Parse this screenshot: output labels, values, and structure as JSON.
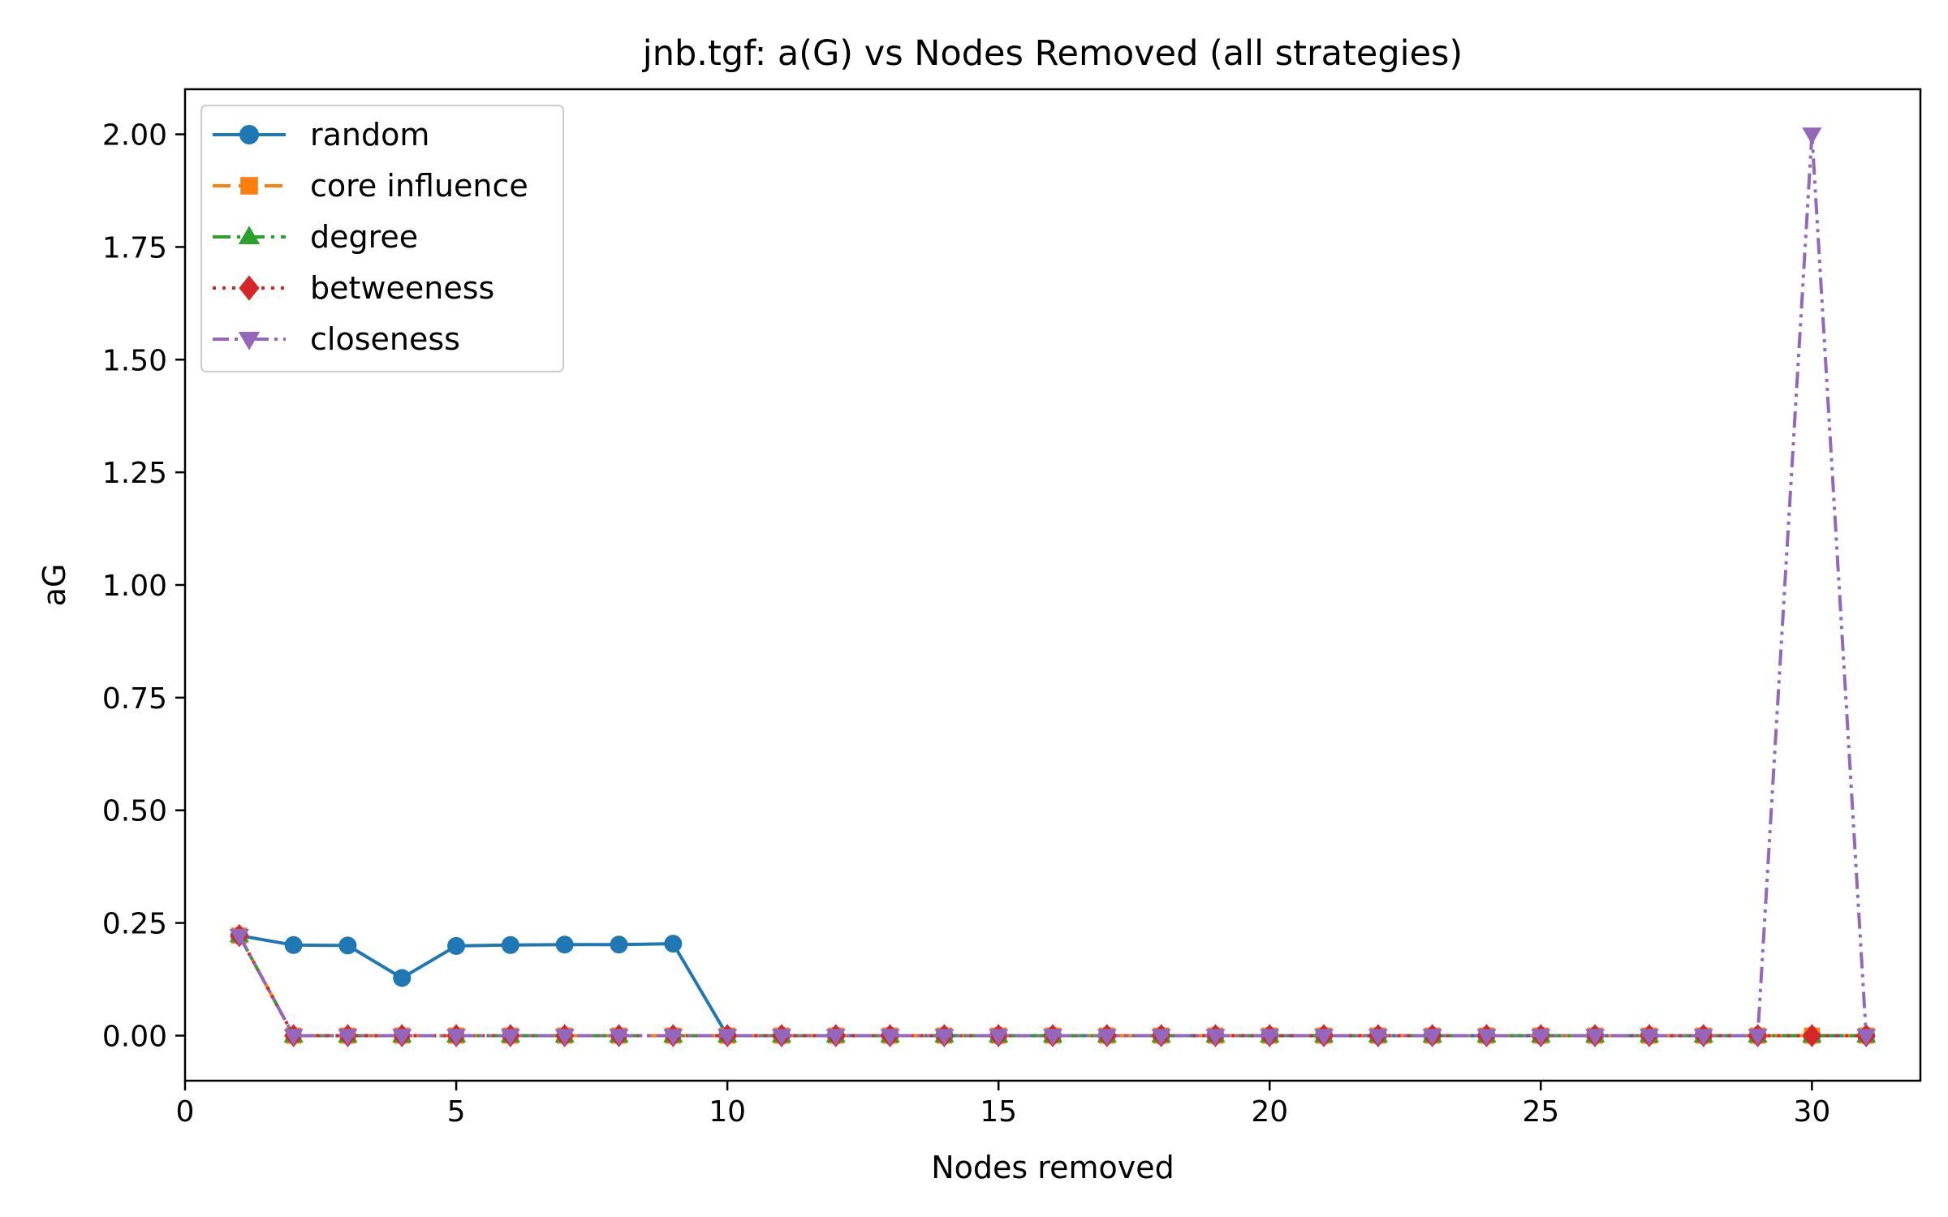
{
  "chart_data": {
    "type": "line",
    "title": "jnb.tgf: a(G) vs Nodes Removed (all strategies)",
    "xlabel": "Nodes removed",
    "ylabel": "aG",
    "xlim": [
      0,
      32
    ],
    "ylim": [
      -0.1,
      2.1
    ],
    "xticks": [
      0,
      5,
      10,
      15,
      20,
      25,
      30
    ],
    "yticks": [
      0.0,
      0.25,
      0.5,
      0.75,
      1.0,
      1.25,
      1.5,
      1.75,
      2.0
    ],
    "ytick_labels": [
      "0.00",
      "0.25",
      "0.50",
      "0.75",
      "1.00",
      "1.25",
      "1.50",
      "1.75",
      "2.00"
    ],
    "grid": false,
    "legend_position": "top-left",
    "x": [
      1,
      2,
      3,
      4,
      5,
      6,
      7,
      8,
      9,
      10,
      11,
      12,
      13,
      14,
      15,
      16,
      17,
      18,
      19,
      20,
      21,
      22,
      23,
      24,
      25,
      26,
      27,
      28,
      29,
      30,
      31
    ],
    "series": [
      {
        "name": "random",
        "color": "#1f77b4",
        "marker": "circle",
        "dash": "solid",
        "values": [
          0.222,
          0.201,
          0.2,
          0.128,
          0.199,
          0.201,
          0.202,
          0.202,
          0.204,
          0,
          0,
          0,
          0,
          0,
          0,
          0,
          0,
          0,
          0,
          0,
          0,
          0,
          0,
          0,
          0,
          0,
          0,
          0,
          0,
          0,
          0
        ]
      },
      {
        "name": "core influence",
        "color": "#ff7f0e",
        "marker": "square",
        "dash": "dashed",
        "values": [
          0.222,
          0,
          0,
          0,
          0,
          0,
          0,
          0,
          0,
          0,
          0,
          0,
          0,
          0,
          0,
          0,
          0,
          0,
          0,
          0,
          0,
          0,
          0,
          0,
          0,
          0,
          0,
          0,
          0,
          0,
          0
        ]
      },
      {
        "name": "degree",
        "color": "#2ca02c",
        "marker": "triangle-up",
        "dash": "dashdot",
        "values": [
          0.222,
          0,
          0,
          0,
          0,
          0,
          0,
          0,
          0,
          0,
          0,
          0,
          0,
          0,
          0,
          0,
          0,
          0,
          0,
          0,
          0,
          0,
          0,
          0,
          0,
          0,
          0,
          0,
          0,
          0,
          0
        ]
      },
      {
        "name": "betweeness",
        "color": "#d62728",
        "marker": "diamond",
        "dash": "dotted",
        "values": [
          0.222,
          0,
          0,
          0,
          0,
          0,
          0,
          0,
          0,
          0,
          0,
          0,
          0,
          0,
          0,
          0,
          0,
          0,
          0,
          0,
          0,
          0,
          0,
          0,
          0,
          0,
          0,
          0,
          0,
          0,
          0
        ]
      },
      {
        "name": "closeness",
        "color": "#9467bd",
        "marker": "triangle-down",
        "dash": "dashdotdot",
        "values": [
          0.222,
          0,
          0,
          0,
          0,
          0,
          0,
          0,
          0,
          0,
          0,
          0,
          0,
          0,
          0,
          0,
          0,
          0,
          0,
          0,
          0,
          0,
          0,
          0,
          0,
          0,
          0,
          0,
          0,
          2.0,
          0
        ]
      }
    ]
  }
}
